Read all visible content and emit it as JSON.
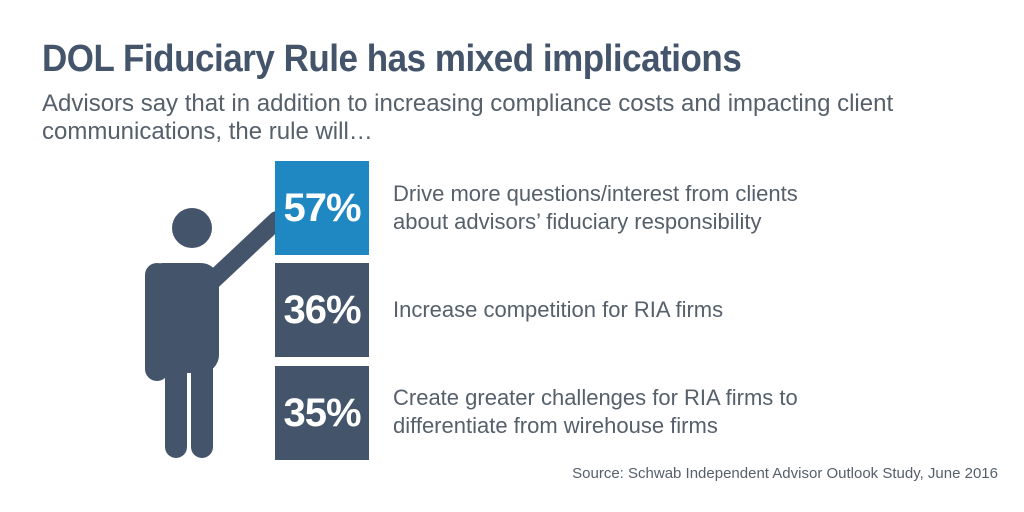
{
  "title": "DOL Fiduciary Rule has mixed implications",
  "subtitle": "Advisors say that in addition to increasing compliance costs and impacting client communications, the rule will…",
  "chart_data": {
    "type": "bar",
    "title": "DOL Fiduciary Rule has mixed implications",
    "categories": [
      "Drive more questions/interest from clients about advisors’ fiduciary responsibility",
      "Increase competition for RIA firms",
      "Create greater challenges for RIA firms to differentiate from wirehouse firms"
    ],
    "values": [
      57,
      36,
      35
    ],
    "value_labels": [
      "57%",
      "36%",
      "35%"
    ],
    "unit": "%"
  },
  "items": [
    {
      "value": "57%",
      "label_line1": "Drive more questions/interest from clients",
      "label_line2": "about advisors’ fiduciary responsibility"
    },
    {
      "value": "36%",
      "label_line1": "Increase competition for RIA firms",
      "label_line2": ""
    },
    {
      "value": "35%",
      "label_line1": "Create greater challenges for RIA firms to",
      "label_line2": "differentiate from wirehouse firms"
    }
  ],
  "source": "Source: Schwab Independent Advisor Outlook Study, June 2016",
  "colors": {
    "highlight": "#1f87c1",
    "dark": "#44546a",
    "text": "#55606b"
  },
  "icons": {
    "figure": "person-pointing-icon"
  }
}
